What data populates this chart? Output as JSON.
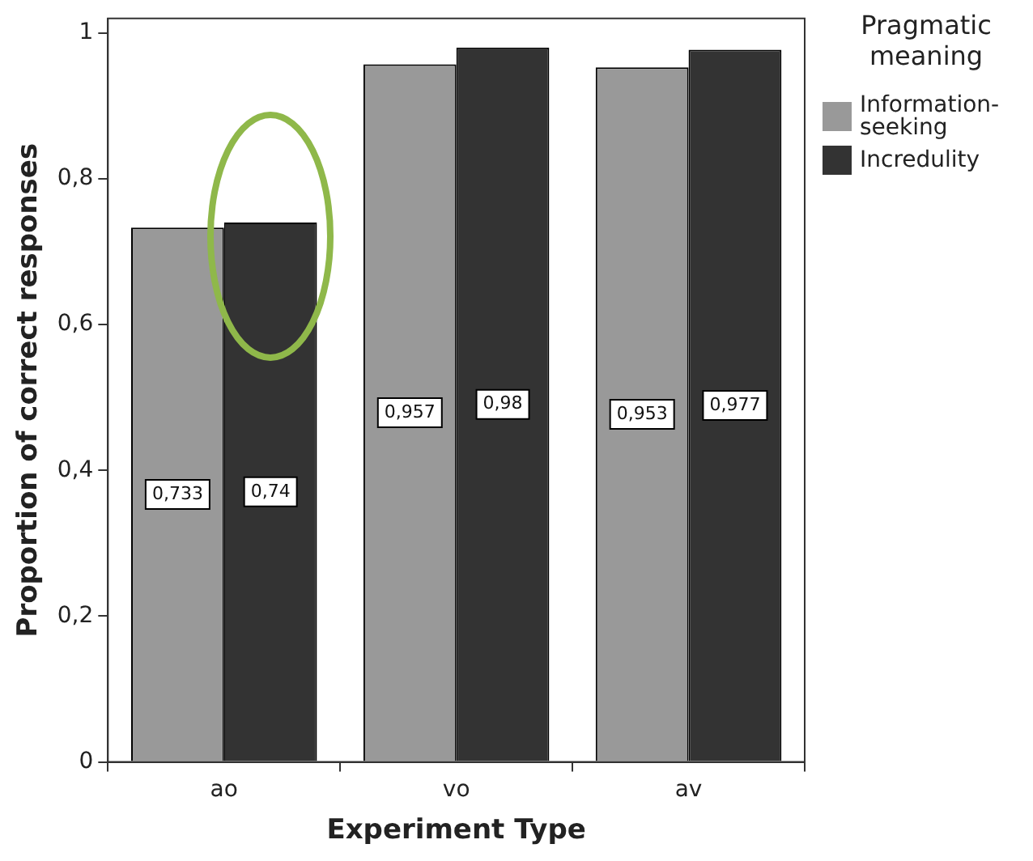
{
  "chart_data": {
    "type": "bar",
    "xlabel": "Experiment Type",
    "ylabel": "Proportion of correct responses",
    "legend_title": "Pragmatic meaning",
    "categories": [
      "ao",
      "vo",
      "av"
    ],
    "series": [
      {
        "name": "Information-seeking",
        "color": "#999999",
        "values": [
          0.733,
          0.957,
          0.953
        ],
        "value_labels": [
          "0,733",
          "0,957",
          "0,953"
        ]
      },
      {
        "name": "Incredulity",
        "color": "#333333",
        "values": [
          0.74,
          0.98,
          0.977
        ],
        "value_labels": [
          "0,74",
          "0,98",
          "0,977"
        ]
      }
    ],
    "ylim": [
      0,
      1.02
    ],
    "yticks": [
      {
        "value": 0,
        "label": "0"
      },
      {
        "value": 0.2,
        "label": "0,2"
      },
      {
        "value": 0.4,
        "label": "0,4"
      },
      {
        "value": 0.6,
        "label": "0,6"
      },
      {
        "value": 0.8,
        "label": "0,8"
      },
      {
        "value": 1,
        "label": "1"
      }
    ],
    "grid": false,
    "legend": "right"
  }
}
